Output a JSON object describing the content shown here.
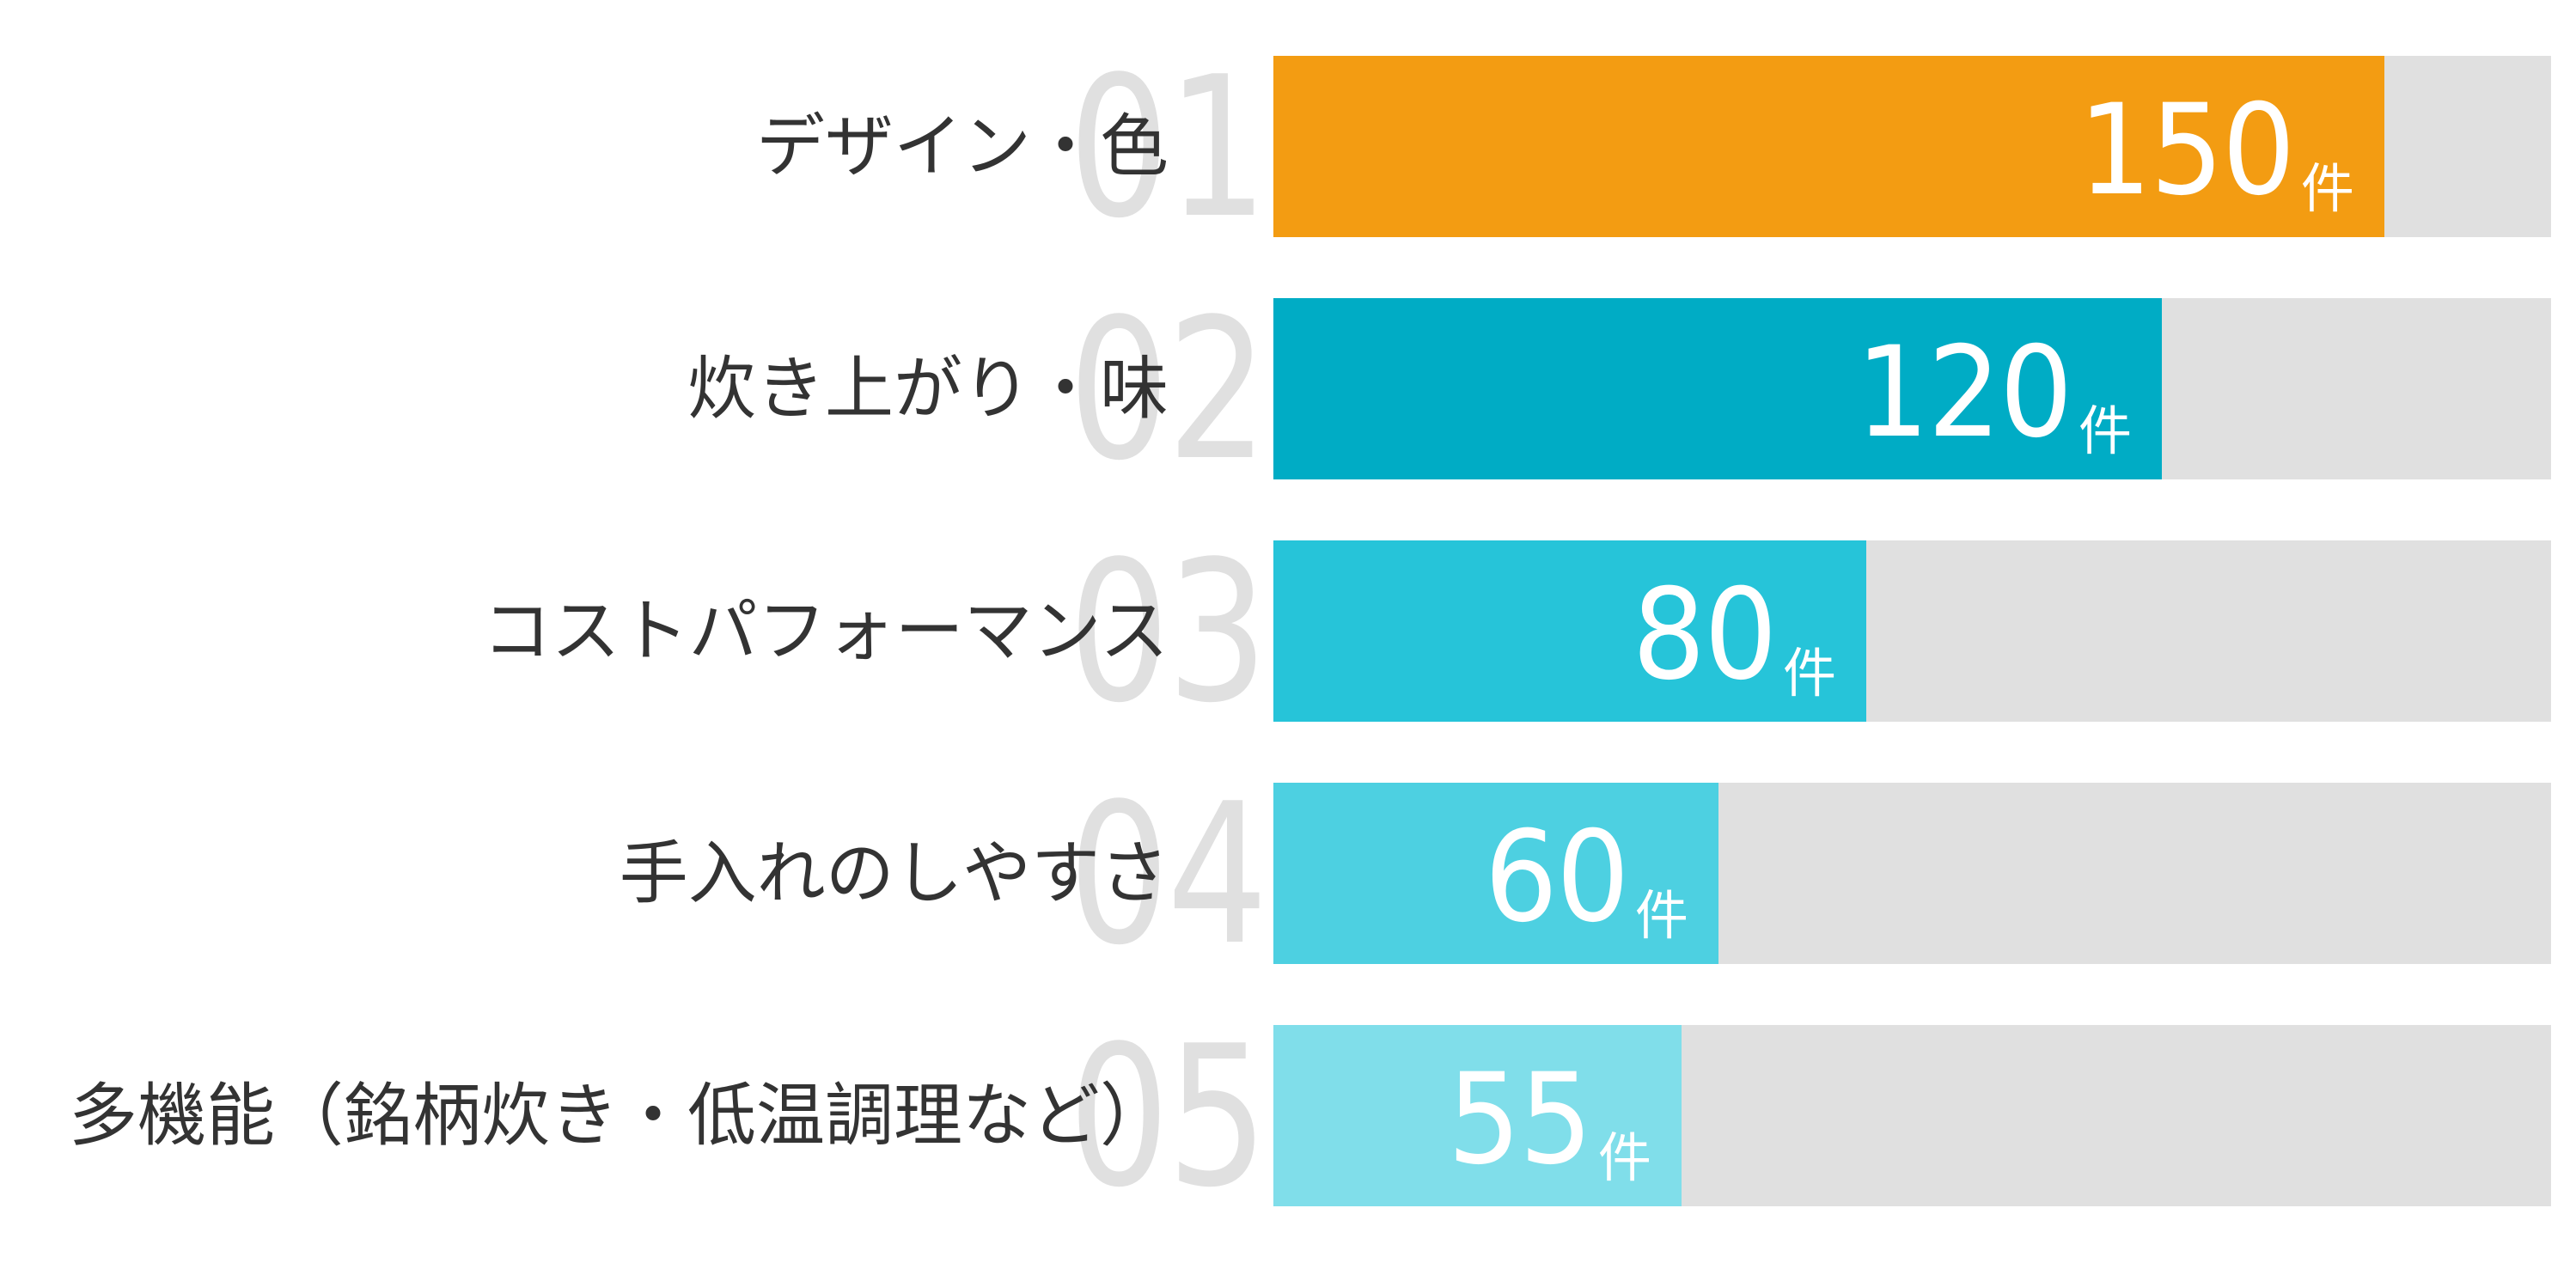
{
  "chart_data": {
    "type": "bar",
    "orientation": "horizontal",
    "title": "",
    "xlabel": "",
    "ylabel": "",
    "unit": "件",
    "xlim": [
      0,
      172.5
    ],
    "grid": false,
    "legend": null,
    "categories": [
      "デザイン・色",
      "炊き上がり・味",
      "コストパフォーマンス",
      "手入れのしやすさ",
      "多機能（銘柄炊き・低温調理など）"
    ],
    "values": [
      150,
      120,
      80,
      60,
      55
    ],
    "ranks": [
      "01",
      "02",
      "03",
      "04",
      "05"
    ]
  },
  "colors": {
    "background": "#FFFFFF",
    "track": "#E0E0E0",
    "rank_text": "#E0E0E0",
    "label_text": "#333333",
    "value_text": "#FFFFFF",
    "bars": [
      "#F39C12",
      "#00ACC5",
      "#26C4D9",
      "#4DD0E1",
      "#80DEEA"
    ]
  },
  "rows": [
    {
      "rank": "01",
      "label": "デザイン・色",
      "value": "150",
      "unit": "件",
      "fill_pct": 86.95,
      "color": "#F39C12"
    },
    {
      "rank": "02",
      "label": "炊き上がり・味",
      "value": "120",
      "unit": "件",
      "fill_pct": 69.54,
      "color": "#00ACC5"
    },
    {
      "rank": "03",
      "label": "コストパフォーマンス",
      "value": "80",
      "unit": "件",
      "fill_pct": 46.4,
      "color": "#26C4D9"
    },
    {
      "rank": "04",
      "label": "手入れのしやすさ",
      "value": "60",
      "unit": "件",
      "fill_pct": 34.83,
      "color": "#4DD0E1"
    },
    {
      "rank": "05",
      "label": "多機能（銘柄炊き・低温調理など）",
      "value": "55",
      "unit": "件",
      "fill_pct": 31.94,
      "color": "#80DEEA"
    }
  ]
}
